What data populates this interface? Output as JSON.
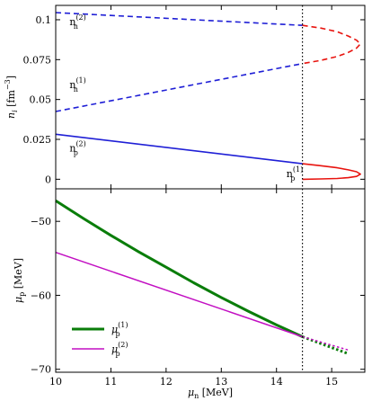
{
  "colors": {
    "blue": "#1f1fd6",
    "red": "#e8140f",
    "green": "#0a7d0a",
    "magenta": "#c20fc2",
    "black": "#000000"
  },
  "chart_data": [
    {
      "type": "line",
      "ylabel": "n_i [fm^-3]",
      "ylabel_main": "n",
      "ylabel_sub": "i",
      "ylabel_unit": "[fm",
      "ylabel_exp": "−3",
      "ylabel_close": "]",
      "xlim": [
        10,
        15.6
      ],
      "ylim": [
        -0.006,
        0.109
      ],
      "yticks": [
        0,
        0.025,
        0.05,
        0.075,
        0.1
      ],
      "ytick_labels": [
        "0",
        "0.025",
        "0.05",
        "0.075",
        "0.1"
      ],
      "vline_x": 14.47,
      "series": [
        {
          "style": "dashed",
          "color": "blue",
          "x": [
            10.0,
            14.47
          ],
          "y": [
            0.1045,
            0.0965
          ]
        },
        {
          "style": "dashed",
          "color": "blue",
          "x": [
            10.0,
            14.47
          ],
          "y": [
            0.0425,
            0.0725
          ]
        },
        {
          "style": "solid",
          "color": "blue",
          "x": [
            10.0,
            14.47
          ],
          "y": [
            0.0282,
            0.0097
          ]
        },
        {
          "style": "dashed",
          "color": "red",
          "x": [
            14.47,
            14.8,
            15.1,
            15.3,
            15.45,
            15.52,
            15.45,
            15.3,
            15.1,
            14.8,
            14.47
          ],
          "y": [
            0.0965,
            0.0948,
            0.0925,
            0.0898,
            0.0872,
            0.0848,
            0.0822,
            0.0795,
            0.077,
            0.0745,
            0.0725
          ]
        },
        {
          "style": "solid",
          "color": "red",
          "x": [
            14.47,
            14.8,
            15.1,
            15.3,
            15.45,
            15.52,
            15.45,
            15.3,
            15.1,
            14.8,
            14.47
          ],
          "y": [
            0.0097,
            0.0085,
            0.0072,
            0.0059,
            0.0047,
            0.0032,
            0.0018,
            0.001,
            0.0005,
            0.0002,
            0.0
          ]
        }
      ],
      "annotations": [
        {
          "base": "n",
          "sub": "n",
          "sup": "(2)",
          "x": 10.25,
          "y": 0.0965
        },
        {
          "base": "n",
          "sub": "n",
          "sup": "(1)",
          "x": 10.25,
          "y": 0.0572
        },
        {
          "base": "n",
          "sub": "p",
          "sup": "(2)",
          "x": 10.25,
          "y": 0.0175
        },
        {
          "base": "n",
          "sub": "p",
          "sup": "(1)",
          "x": 14.18,
          "y": 0.0012
        }
      ]
    },
    {
      "type": "line",
      "xlabel_main": "μ",
      "xlabel_sub": "n",
      "xlabel_unit": "[MeV]",
      "ylabel_main": "μ",
      "ylabel_sub": "p",
      "ylabel_unit": "[MeV]",
      "xlim": [
        10,
        15.6
      ],
      "ylim": [
        -70.4,
        -45.6
      ],
      "xticks": [
        10,
        11,
        12,
        13,
        14,
        15
      ],
      "xtick_labels": [
        "10",
        "11",
        "12",
        "13",
        "14",
        "15"
      ],
      "yticks": [
        -50,
        -60,
        -70
      ],
      "ytick_labels": [
        "−50",
        "−60",
        "−70"
      ],
      "vline_x": 14.47,
      "series": [
        {
          "name_base": "μ",
          "name_sub": "p",
          "name_sup": "(1)",
          "style": "solid",
          "color": "green",
          "width": 3,
          "x": [
            10.0,
            10.5,
            11.0,
            11.5,
            12.0,
            12.5,
            13.0,
            13.5,
            14.0,
            14.47
          ],
          "y": [
            -47.2,
            -49.6,
            -51.9,
            -54.1,
            -56.2,
            -58.3,
            -60.3,
            -62.2,
            -64.0,
            -65.6
          ]
        },
        {
          "name_base": "μ",
          "name_sub": "p",
          "name_sup": "(2)",
          "style": "solid",
          "color": "magenta",
          "width": 1.5,
          "x": [
            10.0,
            14.47
          ],
          "y": [
            -54.2,
            -65.6
          ]
        },
        {
          "style": "dotted",
          "color": "green",
          "width": 3,
          "x": [
            14.47,
            15.3
          ],
          "y": [
            -65.6,
            -67.9
          ]
        },
        {
          "style": "dotted",
          "color": "magenta",
          "width": 1.5,
          "x": [
            14.47,
            15.3
          ],
          "y": [
            -65.6,
            -67.4
          ]
        }
      ],
      "legend_position": "lower-left"
    }
  ]
}
